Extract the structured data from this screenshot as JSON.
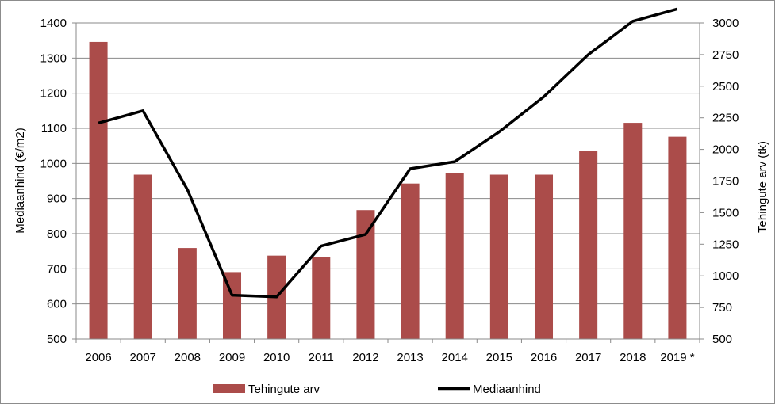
{
  "chart_data": {
    "type": "bar",
    "categories": [
      "2006",
      "2007",
      "2008",
      "2009",
      "2010",
      "2011",
      "2012",
      "2013",
      "2014",
      "2015",
      "2016",
      "2017",
      "2018",
      "2019 *"
    ],
    "series": [
      {
        "name": "Tehingute arv",
        "type": "bar",
        "axis": "right",
        "color": "#AB4C4A",
        "values": [
          2850,
          1800,
          1220,
          1030,
          1160,
          1150,
          1520,
          1730,
          1810,
          1800,
          1800,
          1990,
          2210,
          2100
        ]
      },
      {
        "name": "Mediaanhind",
        "type": "line",
        "axis": "left",
        "color": "#000000",
        "values": [
          1115,
          1150,
          925,
          625,
          620,
          765,
          798,
          985,
          1005,
          1090,
          1190,
          1310,
          1405,
          1440
        ]
      }
    ],
    "ylabel": "Mediaanhind (€/m2)",
    "y2label": "Tehingute arv (tk)",
    "ylim": [
      500,
      1400
    ],
    "y2lim": [
      500,
      3000
    ],
    "yticks": [
      "500",
      "600",
      "700",
      "800",
      "900",
      "1000",
      "1100",
      "1200",
      "1300",
      "1400"
    ],
    "y2ticks": [
      "500",
      "750",
      "1000",
      "1250",
      "1500",
      "1750",
      "2000",
      "2250",
      "2500",
      "2750",
      "3000"
    ],
    "grid": true,
    "legend_position": "bottom"
  }
}
